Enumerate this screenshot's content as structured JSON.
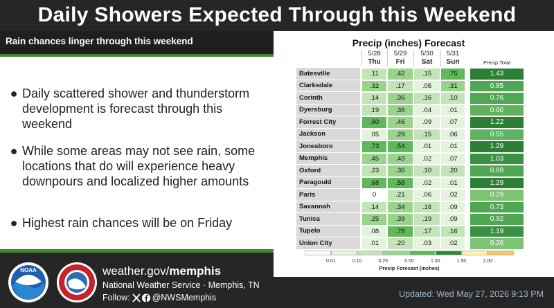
{
  "header": {
    "title": "Daily Showers Expected Through this Weekend",
    "subtitle": "Rain chances linger through this weekend"
  },
  "bullets": [
    "Daily scattered shower and thunderstorm development is forecast through this weekend",
    "While some areas may not see rain, some locations that do will experience heavy downpours and localized higher amounts",
    "Highest rain chances will be on Friday"
  ],
  "table": {
    "title": "Precip (inches) Forecast",
    "dates": [
      "5/28",
      "5/29",
      "5/30",
      "5/31"
    ],
    "days": [
      "Thu",
      "Fri",
      "Sat",
      "Sun"
    ],
    "total_header": "Precip Total",
    "rows": [
      [
        "Batesville",
        ".11",
        ".42",
        ".15",
        ".75",
        "1.43"
      ],
      [
        "Clarksdale",
        ".32",
        ".17",
        ".05",
        ".31",
        "0.85"
      ],
      [
        "Corinth",
        ".14",
        ".36",
        ".16",
        ".10",
        "0.76"
      ],
      [
        "Dyersburg",
        ".19",
        ".36",
        ".04",
        ".01",
        "0.60"
      ],
      [
        "Forrest City",
        ".60",
        ".46",
        ".09",
        ".07",
        "1.22"
      ],
      [
        "Jackson",
        ".05",
        ".29",
        ".15",
        ".06",
        "0.55"
      ],
      [
        "Jonesboro",
        ".73",
        ".54",
        ".01",
        ".01",
        "1.29"
      ],
      [
        "Memphis",
        ".45",
        ".49",
        ".02",
        ".07",
        "1.03"
      ],
      [
        "Oxford",
        ".23",
        ".36",
        ".10",
        ".20",
        "0.89"
      ],
      [
        "Paragould",
        ".68",
        ".58",
        ".02",
        ".01",
        "1.29"
      ],
      [
        "Paris",
        "0",
        ".21",
        ".06",
        ".02",
        "0.29"
      ],
      [
        "Savannah",
        ".14",
        ".34",
        ".16",
        ".09",
        "0.73"
      ],
      [
        "Tunica",
        ".25",
        ".39",
        ".19",
        ".09",
        "0.92"
      ],
      [
        "Tupelo",
        ".08",
        ".78",
        ".17",
        ".16",
        "1.19"
      ],
      [
        "Union City",
        ".01",
        ".20",
        ".03",
        ".02",
        "0.26"
      ]
    ]
  },
  "legend": {
    "title": "Precip Forecast (inches)",
    "ticks": [
      "0.01",
      "0.10",
      "0.25",
      "0.50",
      "1.00",
      "1.50",
      "2.00"
    ],
    "colors": [
      "#ffffff",
      "#e3f3dc",
      "#c2e5b8",
      "#98d48c",
      "#5fb85a",
      "#2e8a3a",
      "#fff3a8",
      "#f7c85f"
    ]
  },
  "footer": {
    "site_prefix": "weather.gov/",
    "site_bold": "memphis",
    "org": "National Weather Service · Memphis, TN",
    "follow": "Follow:",
    "handle": "@NWSMemphis",
    "updated": "Updated: Wed May 27, 2026 9:13 PM",
    "noaa": "NOAA"
  }
}
